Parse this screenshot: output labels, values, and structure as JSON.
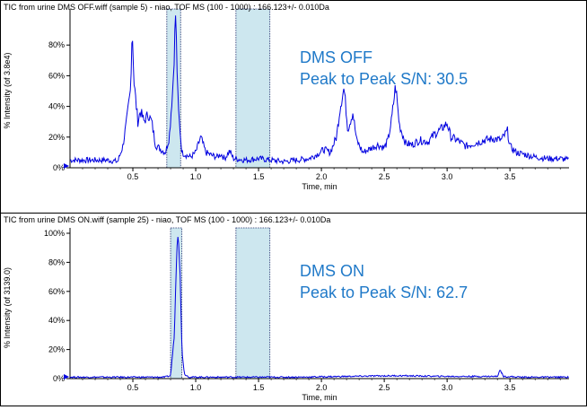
{
  "chart_data": [
    {
      "type": "line",
      "title": "TIC from urine DMS OFF.wiff (sample 5) - niao, TOF MS (100 - 1000) : 166.123+/- 0.010Da",
      "ylabel": "% Intensity (of 3.8e4)",
      "xlabel": "Time, min",
      "xlim": [
        0.0,
        3.97
      ],
      "ylim": [
        0,
        100
      ],
      "xticks": [
        "0.5",
        "1.0",
        "1.5",
        "2.0",
        "2.5",
        "3.0",
        "3.5"
      ],
      "yticks": [
        "0%",
        "20%",
        "40%",
        "60%",
        "80%"
      ],
      "annotation": [
        "DMS OFF",
        "Peak to Peak S/N: 30.5"
      ],
      "highlight_regions": [
        [
          0.77,
          0.88
        ],
        [
          1.32,
          1.59
        ]
      ],
      "series_color": "#0000e0",
      "points": [
        [
          0.0,
          5
        ],
        [
          0.3,
          5
        ],
        [
          0.38,
          4
        ],
        [
          0.42,
          14
        ],
        [
          0.45,
          30
        ],
        [
          0.48,
          50
        ],
        [
          0.495,
          92
        ],
        [
          0.51,
          55
        ],
        [
          0.54,
          30
        ],
        [
          0.56,
          37
        ],
        [
          0.59,
          30
        ],
        [
          0.62,
          35
        ],
        [
          0.65,
          30
        ],
        [
          0.68,
          15
        ],
        [
          0.72,
          12
        ],
        [
          0.76,
          10
        ],
        [
          0.79,
          20
        ],
        [
          0.82,
          55
        ],
        [
          0.84,
          100
        ],
        [
          0.86,
          40
        ],
        [
          0.89,
          10
        ],
        [
          0.93,
          8
        ],
        [
          0.96,
          7
        ],
        [
          1.0,
          10
        ],
        [
          1.04,
          20
        ],
        [
          1.08,
          10
        ],
        [
          1.13,
          8
        ],
        [
          1.17,
          7
        ],
        [
          1.2,
          9
        ],
        [
          1.23,
          6
        ],
        [
          1.27,
          11
        ],
        [
          1.3,
          6
        ],
        [
          1.4,
          5
        ],
        [
          1.5,
          6
        ],
        [
          1.6,
          5
        ],
        [
          1.7,
          4
        ],
        [
          1.8,
          5
        ],
        [
          1.9,
          6
        ],
        [
          1.97,
          9
        ],
        [
          2.02,
          12
        ],
        [
          2.07,
          10
        ],
        [
          2.12,
          20
        ],
        [
          2.15,
          40
        ],
        [
          2.18,
          52
        ],
        [
          2.21,
          25
        ],
        [
          2.25,
          36
        ],
        [
          2.28,
          18
        ],
        [
          2.33,
          10
        ],
        [
          2.4,
          13
        ],
        [
          2.45,
          15
        ],
        [
          2.5,
          13
        ],
        [
          2.53,
          18
        ],
        [
          2.56,
          32
        ],
        [
          2.59,
          54
        ],
        [
          2.62,
          28
        ],
        [
          2.67,
          16
        ],
        [
          2.72,
          15
        ],
        [
          2.78,
          18
        ],
        [
          2.85,
          17
        ],
        [
          2.9,
          22
        ],
        [
          2.95,
          25
        ],
        [
          3.0,
          29
        ],
        [
          3.03,
          20
        ],
        [
          3.08,
          18
        ],
        [
          3.15,
          14
        ],
        [
          3.22,
          16
        ],
        [
          3.3,
          18
        ],
        [
          3.37,
          19
        ],
        [
          3.43,
          18
        ],
        [
          3.48,
          24
        ],
        [
          3.5,
          14
        ],
        [
          3.55,
          10
        ],
        [
          3.6,
          9
        ],
        [
          3.7,
          7
        ],
        [
          3.8,
          6
        ],
        [
          3.9,
          6
        ],
        [
          3.97,
          5
        ]
      ]
    },
    {
      "type": "line",
      "title": "TIC from urine DMS ON.wiff (sample 25) - niao, TOF MS (100 - 1000) : 166.123+/- 0.010Da",
      "ylabel": "% Intensity (of 3139.0)",
      "xlabel": "Time, min",
      "xlim": [
        0.0,
        3.97
      ],
      "ylim": [
        0,
        100
      ],
      "xticks": [
        "0.5",
        "1.0",
        "1.5",
        "2.0",
        "2.5",
        "3.0",
        "3.5"
      ],
      "yticks": [
        "0%",
        "20%",
        "40%",
        "60%",
        "80%",
        "100%"
      ],
      "annotation": [
        "DMS ON",
        "Peak to Peak S/N: 62.7"
      ],
      "highlight_regions": [
        [
          0.8,
          0.89
        ],
        [
          1.32,
          1.59
        ]
      ],
      "series_color": "#0000e0",
      "points": [
        [
          0.0,
          1
        ],
        [
          0.5,
          1
        ],
        [
          0.75,
          1
        ],
        [
          0.8,
          2
        ],
        [
          0.83,
          30
        ],
        [
          0.85,
          90
        ],
        [
          0.86,
          100
        ],
        [
          0.875,
          75
        ],
        [
          0.89,
          20
        ],
        [
          0.91,
          3
        ],
        [
          0.95,
          1
        ],
        [
          1.3,
          1
        ],
        [
          1.8,
          1
        ],
        [
          2.2,
          1.5
        ],
        [
          2.6,
          2
        ],
        [
          3.0,
          1.5
        ],
        [
          3.4,
          1.5
        ],
        [
          3.42,
          6
        ],
        [
          3.45,
          1.5
        ],
        [
          3.6,
          1
        ],
        [
          3.97,
          1
        ]
      ]
    }
  ]
}
